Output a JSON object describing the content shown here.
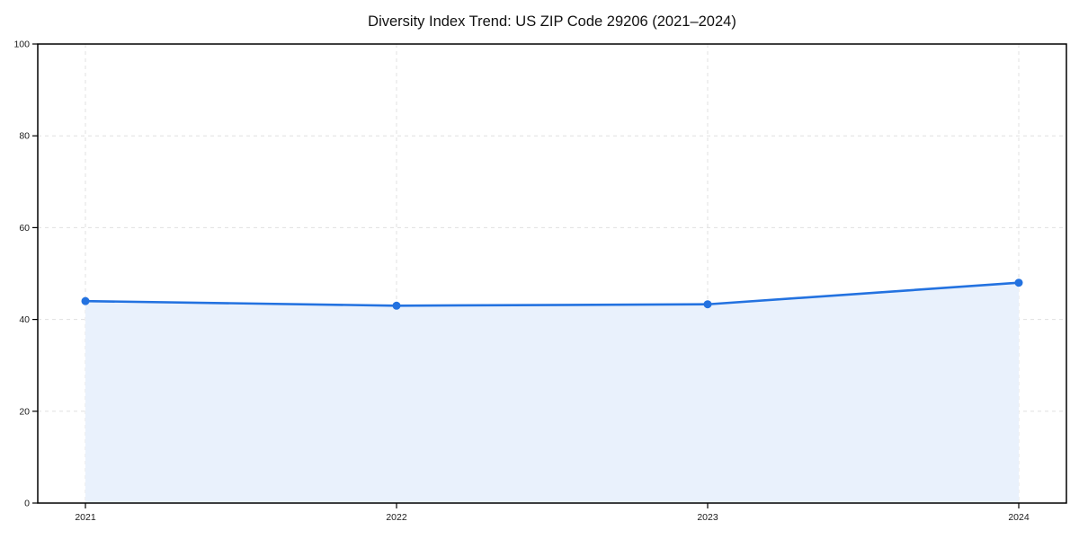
{
  "chart": {
    "title": "Diversity Index Trend: US ZIP Code 29206 (2021–2024)"
  },
  "chart_data": {
    "type": "area",
    "title": "Diversity Index Trend: US ZIP Code 29206 (2021–2024)",
    "categories": [
      "2021",
      "2022",
      "2023",
      "2024"
    ],
    "series": [
      {
        "name": "Diversity Index",
        "values": [
          44.0,
          43.0,
          43.3,
          48.0
        ]
      }
    ],
    "xlabel": "",
    "ylabel": "",
    "ylim": [
      0,
      100
    ],
    "yticks": [
      0,
      20,
      40,
      60,
      80,
      100
    ],
    "grid": "dashed-both-axes",
    "legend_position": "none",
    "marker": "circle",
    "colors": {
      "line": "#2372e0",
      "marker": "#2372e0",
      "fill": "#e9f1fc",
      "grid": "#e0e0e0",
      "axis": "#000000",
      "text": "#1a1a1a",
      "background": "#ffffff"
    }
  }
}
